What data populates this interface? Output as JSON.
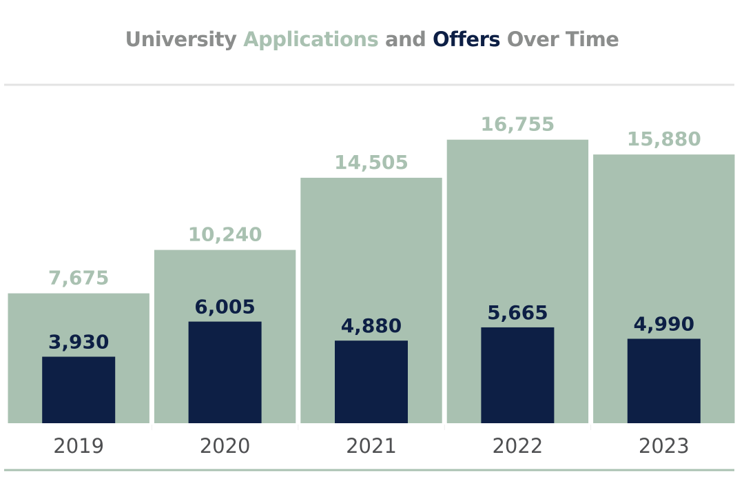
{
  "colors": {
    "applications": "#a9c1b1",
    "offers": "#0d1f45",
    "title_gray": "#8b8d8c",
    "axis_text": "#4e4f51",
    "top_rule": "#e3e3e3",
    "bottom_rule": "#a9c1b1"
  },
  "chart_data": {
    "type": "bar",
    "title_parts": [
      "University ",
      "Applications",
      " and ",
      "Offers",
      " Over Time"
    ],
    "categories": [
      "2019",
      "2020",
      "2021",
      "2022",
      "2023"
    ],
    "series": [
      {
        "name": "Applications",
        "values": [
          7675,
          10240,
          14505,
          16755,
          15880
        ],
        "labels": [
          "7,675",
          "10,240",
          "14,505",
          "16,755",
          "15,880"
        ]
      },
      {
        "name": "Offers",
        "values": [
          3930,
          6005,
          4880,
          5665,
          4990
        ],
        "labels": [
          "3,930",
          "6,005",
          "4,880",
          "5,665",
          "4,990"
        ]
      }
    ],
    "xlabel": "",
    "ylabel": "",
    "ylim": [
      0,
      20000
    ],
    "grid": false,
    "legend": "none (encoded in title colors)"
  }
}
